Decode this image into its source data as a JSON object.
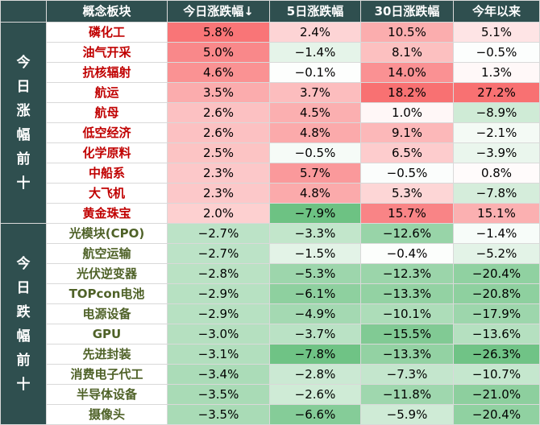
{
  "headers": {
    "concept": "概念板块",
    "today": "今日涨跌幅↓",
    "five_day": "5日涨跌幅",
    "thirty_day": "30日涨跌幅",
    "ytd": "今年以来"
  },
  "groups": {
    "top": "今日涨幅前十",
    "bottom": "今日跌幅前十"
  },
  "rows": [
    {
      "name": "磷化工",
      "d1": "5.8%",
      "d5": "2.4%",
      "d30": "10.5%",
      "ytd": "5.1%",
      "v1": 5.8,
      "v5": 2.4,
      "v30": 10.5,
      "vy": 5.1
    },
    {
      "name": "油气开采",
      "d1": "5.0%",
      "d5": "−1.4%",
      "d30": "8.1%",
      "ytd": "−0.5%",
      "v1": 5.0,
      "v5": -1.4,
      "v30": 8.1,
      "vy": -0.5
    },
    {
      "name": "抗核辐射",
      "d1": "4.6%",
      "d5": "−0.1%",
      "d30": "14.0%",
      "ytd": "1.3%",
      "v1": 4.6,
      "v5": -0.1,
      "v30": 14.0,
      "vy": 1.3
    },
    {
      "name": "航运",
      "d1": "3.5%",
      "d5": "3.7%",
      "d30": "18.2%",
      "ytd": "27.2%",
      "v1": 3.5,
      "v5": 3.7,
      "v30": 18.2,
      "vy": 27.2
    },
    {
      "name": "航母",
      "d1": "2.6%",
      "d5": "4.5%",
      "d30": "1.0%",
      "ytd": "−8.9%",
      "v1": 2.6,
      "v5": 4.5,
      "v30": 1.0,
      "vy": -8.9
    },
    {
      "name": "低空经济",
      "d1": "2.6%",
      "d5": "4.8%",
      "d30": "9.1%",
      "ytd": "−2.1%",
      "v1": 2.6,
      "v5": 4.8,
      "v30": 9.1,
      "vy": -2.1
    },
    {
      "name": "化学原料",
      "d1": "2.5%",
      "d5": "−0.5%",
      "d30": "6.5%",
      "ytd": "−3.9%",
      "v1": 2.5,
      "v5": -0.5,
      "v30": 6.5,
      "vy": -3.9
    },
    {
      "name": "中船系",
      "d1": "2.3%",
      "d5": "5.7%",
      "d30": "−0.5%",
      "ytd": "0.8%",
      "v1": 2.3,
      "v5": 5.7,
      "v30": -0.5,
      "vy": 0.8
    },
    {
      "name": "大飞机",
      "d1": "2.3%",
      "d5": "4.8%",
      "d30": "5.3%",
      "ytd": "−7.8%",
      "v1": 2.3,
      "v5": 4.8,
      "v30": 5.3,
      "vy": -7.8
    },
    {
      "name": "黄金珠宝",
      "d1": "2.0%",
      "d5": "−7.9%",
      "d30": "15.7%",
      "ytd": "15.1%",
      "v1": 2.0,
      "v5": -7.9,
      "v30": 15.7,
      "vy": 15.1
    },
    {
      "name": "光模块(CPO)",
      "d1": "−2.7%",
      "d5": "−3.3%",
      "d30": "−12.6%",
      "ytd": "−1.4%",
      "v1": -2.7,
      "v5": -3.3,
      "v30": -12.6,
      "vy": -1.4
    },
    {
      "name": "航空运输",
      "d1": "−2.7%",
      "d5": "−1.5%",
      "d30": "−0.4%",
      "ytd": "−5.2%",
      "v1": -2.7,
      "v5": -1.5,
      "v30": -0.4,
      "vy": -5.2
    },
    {
      "name": "光伏逆变器",
      "d1": "−2.8%",
      "d5": "−5.3%",
      "d30": "−12.3%",
      "ytd": "−20.4%",
      "v1": -2.8,
      "v5": -5.3,
      "v30": -12.3,
      "vy": -20.4
    },
    {
      "name": "TOPcon电池",
      "d1": "−2.9%",
      "d5": "−6.1%",
      "d30": "−13.3%",
      "ytd": "−20.8%",
      "v1": -2.9,
      "v5": -6.1,
      "v30": -13.3,
      "vy": -20.8
    },
    {
      "name": "电源设备",
      "d1": "−2.9%",
      "d5": "−4.9%",
      "d30": "−10.1%",
      "ytd": "−17.9%",
      "v1": -2.9,
      "v5": -4.9,
      "v30": -10.1,
      "vy": -17.9
    },
    {
      "name": "GPU",
      "d1": "−3.0%",
      "d5": "−3.7%",
      "d30": "−15.5%",
      "ytd": "−13.6%",
      "v1": -3.0,
      "v5": -3.7,
      "v30": -15.5,
      "vy": -13.6
    },
    {
      "name": "先进封装",
      "d1": "−3.1%",
      "d5": "−7.8%",
      "d30": "−13.3%",
      "ytd": "−26.3%",
      "v1": -3.1,
      "v5": -7.8,
      "v30": -13.3,
      "vy": -26.3
    },
    {
      "name": "消费电子代工",
      "d1": "−3.4%",
      "d5": "−2.8%",
      "d30": "−7.3%",
      "ytd": "−10.7%",
      "v1": -3.4,
      "v5": -2.8,
      "v30": -7.3,
      "vy": -10.7
    },
    {
      "name": "半导体设备",
      "d1": "−3.5%",
      "d5": "−2.6%",
      "d30": "−11.8%",
      "ytd": "−21.0%",
      "v1": -3.5,
      "v5": -2.6,
      "v30": -11.8,
      "vy": -21.0
    },
    {
      "name": "摄像头",
      "d1": "−3.5%",
      "d5": "−6.6%",
      "d30": "−5.9%",
      "ytd": "−20.4%",
      "v1": -3.5,
      "v5": -6.6,
      "v30": -5.9,
      "vy": -20.4
    }
  ],
  "colors": {
    "header_bg": "#2f4f4f",
    "up_text": "#c00000",
    "down_text": "#4f6228",
    "pos_max": "#f8696b",
    "neg_max": "#63be7b"
  }
}
